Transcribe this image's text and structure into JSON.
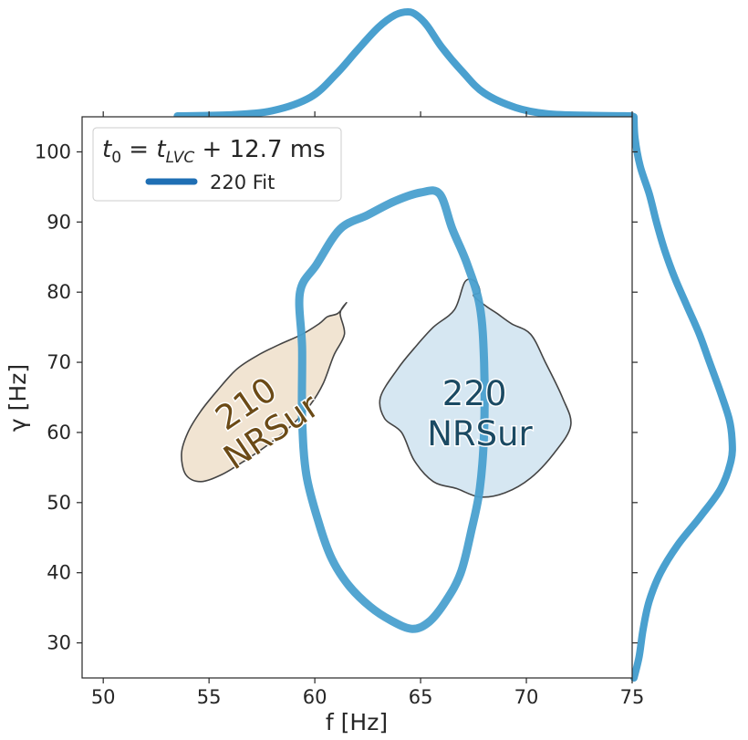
{
  "chart_data": {
    "type": "contour",
    "xlabel": "f [Hz]",
    "ylabel": "γ [Hz]",
    "xlim": [
      49,
      75
    ],
    "ylim": [
      25,
      105
    ],
    "xticks": [
      50,
      55,
      60,
      65,
      70,
      75
    ],
    "yticks": [
      30,
      40,
      50,
      60,
      70,
      80,
      90,
      100
    ],
    "legend": {
      "position": "top-left",
      "title": "t0 = tLVC + 12.7 ms",
      "entries": [
        {
          "label": "220 Fit",
          "color": "#1f6fb4"
        }
      ]
    },
    "fit_contour": {
      "name": "220 Fit",
      "color": "#4aa0cf",
      "points": [
        [
          59.3,
          80
        ],
        [
          60.1,
          84
        ],
        [
          61.2,
          89
        ],
        [
          62.5,
          91
        ],
        [
          63.8,
          93
        ],
        [
          65.0,
          94.2
        ],
        [
          65.9,
          94
        ],
        [
          66.5,
          89
        ],
        [
          67.2,
          84
        ],
        [
          67.8,
          78
        ],
        [
          68.0,
          70
        ],
        [
          68.0,
          60
        ],
        [
          67.8,
          52
        ],
        [
          67.4,
          46
        ],
        [
          66.9,
          40
        ],
        [
          66.2,
          36
        ],
        [
          65.4,
          33
        ],
        [
          64.6,
          32
        ],
        [
          63.6,
          33.2
        ],
        [
          62.6,
          35.2
        ],
        [
          61.6,
          38.2
        ],
        [
          60.8,
          42
        ],
        [
          60.2,
          47
        ],
        [
          59.6,
          54
        ],
        [
          59.4,
          62
        ],
        [
          59.4,
          72
        ],
        [
          59.3,
          80
        ]
      ]
    },
    "nrsur_210": {
      "name": "210 NRSur",
      "label": "210\nNRSur",
      "fill": "#f1e4d2",
      "points": [
        [
          53.9,
          54
        ],
        [
          54.6,
          53
        ],
        [
          55.6,
          54
        ],
        [
          56.7,
          56
        ],
        [
          57.9,
          58.5
        ],
        [
          58.9,
          61
        ],
        [
          59.8,
          64
        ],
        [
          60.4,
          67
        ],
        [
          60.9,
          71
        ],
        [
          61.4,
          74
        ],
        [
          61.2,
          77
        ],
        [
          61.5,
          78.5
        ],
        [
          61.1,
          77
        ],
        [
          60.6,
          76.5
        ],
        [
          60.2,
          75.5
        ],
        [
          59.4,
          74
        ],
        [
          58.3,
          72.5
        ],
        [
          57.3,
          71
        ],
        [
          56.3,
          69
        ],
        [
          55.4,
          66
        ],
        [
          54.6,
          63
        ],
        [
          54.0,
          60
        ],
        [
          53.7,
          57
        ],
        [
          53.9,
          54
        ]
      ]
    },
    "nrsur_220": {
      "name": "220 NRSur",
      "label": "220\nNRSur",
      "fill": "#d6e7f2",
      "points": [
        [
          66.7,
          52
        ],
        [
          67.8,
          50.8
        ],
        [
          69.0,
          51.4
        ],
        [
          70.2,
          53.5
        ],
        [
          71.3,
          57
        ],
        [
          72.1,
          61
        ],
        [
          71.7,
          65
        ],
        [
          70.9,
          70
        ],
        [
          70.2,
          74
        ],
        [
          69.3,
          75.5
        ],
        [
          68.6,
          77
        ],
        [
          68.1,
          78
        ],
        [
          67.5,
          79.5
        ],
        [
          67.8,
          80
        ],
        [
          67.6,
          81.5
        ],
        [
          67.1,
          81.5
        ],
        [
          66.6,
          77.5
        ],
        [
          65.6,
          75
        ],
        [
          64.7,
          72
        ],
        [
          63.9,
          69
        ],
        [
          63.1,
          65
        ],
        [
          63.3,
          62
        ],
        [
          64.1,
          60
        ],
        [
          64.7,
          56
        ],
        [
          65.6,
          53
        ],
        [
          66.7,
          52
        ]
      ]
    },
    "marginal_x": {
      "color": "#4aa0cf",
      "x": [
        53.5,
        56,
        58,
        59.8,
        61,
        62,
        63,
        63.8,
        64.4,
        64.8,
        65.3,
        66,
        67,
        68,
        69.5,
        71,
        73,
        75
      ],
      "density": [
        0,
        0.01,
        0.05,
        0.18,
        0.4,
        0.63,
        0.85,
        0.97,
        1.0,
        0.97,
        0.87,
        0.66,
        0.42,
        0.22,
        0.08,
        0.02,
        0.005,
        0
      ]
    },
    "marginal_y": {
      "color": "#4aa0cf",
      "y": [
        105,
        102,
        98,
        94,
        90,
        86,
        82,
        78,
        74,
        70,
        66,
        62,
        59,
        56,
        52,
        48,
        44,
        40,
        36,
        32,
        28,
        25
      ],
      "density": [
        0,
        0.01,
        0.06,
        0.15,
        0.22,
        0.3,
        0.4,
        0.52,
        0.64,
        0.74,
        0.84,
        0.93,
        0.96,
        0.95,
        0.85,
        0.65,
        0.43,
        0.26,
        0.15,
        0.09,
        0.05,
        0
      ]
    }
  }
}
